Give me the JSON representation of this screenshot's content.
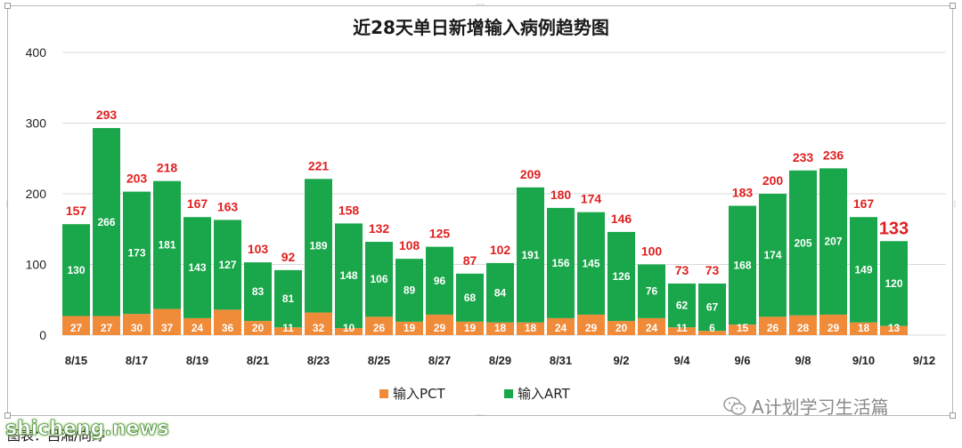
{
  "chart_data": {
    "type": "bar",
    "stacked": true,
    "title": "近28天单日新增输入病例趋势图",
    "categories": [
      "8/15",
      "8/16",
      "8/17",
      "8/18",
      "8/19",
      "8/20",
      "8/21",
      "8/22",
      "8/23",
      "8/24",
      "8/25",
      "8/26",
      "8/27",
      "8/28",
      "8/29",
      "8/30",
      "8/31",
      "9/1",
      "9/2",
      "9/3",
      "9/4",
      "9/5",
      "9/6",
      "9/7",
      "9/8",
      "9/9",
      "9/10",
      "9/11"
    ],
    "x_tick_labels": [
      "8/15",
      "8/17",
      "8/19",
      "8/21",
      "8/23",
      "8/25",
      "8/27",
      "8/29",
      "8/31",
      "9/2",
      "9/4",
      "9/6",
      "9/8",
      "9/10",
      "9/12"
    ],
    "series": [
      {
        "name": "输入PCT",
        "color": "#f08b3a",
        "values": [
          27,
          27,
          30,
          37,
          24,
          36,
          20,
          11,
          32,
          10,
          26,
          19,
          29,
          19,
          18,
          18,
          24,
          29,
          20,
          24,
          11,
          6,
          15,
          26,
          28,
          29,
          18,
          13
        ]
      },
      {
        "name": "输入ART",
        "color": "#1aa64a",
        "values": [
          130,
          266,
          173,
          181,
          143,
          127,
          83,
          81,
          189,
          148,
          106,
          89,
          96,
          68,
          84,
          191,
          156,
          145,
          126,
          76,
          62,
          67,
          168,
          174,
          205,
          207,
          149,
          120
        ]
      }
    ],
    "totals": [
      157,
      293,
      203,
      218,
      167,
      163,
      103,
      92,
      221,
      158,
      132,
      108,
      125,
      87,
      102,
      209,
      180,
      174,
      146,
      100,
      73,
      73,
      183,
      200,
      233,
      236,
      167,
      133
    ],
    "highlighted_total_index": 27,
    "ylim": [
      0,
      400
    ],
    "yticks": [
      0,
      100,
      200,
      300,
      400
    ],
    "grid": true,
    "legend_position": "bottom"
  },
  "legend": {
    "items": [
      {
        "label": "输入PCT",
        "color": "#f08b3a"
      },
      {
        "label": "输入ART",
        "color": "#1aa64a"
      }
    ]
  },
  "footer": {
    "caption": "图表：吕湘/向婷",
    "site_watermark": "shicheng.news",
    "brand_watermark": "A计划学习生活篇"
  },
  "colors": {
    "total_label": "#e02020",
    "grid": "#d9d9d9"
  }
}
